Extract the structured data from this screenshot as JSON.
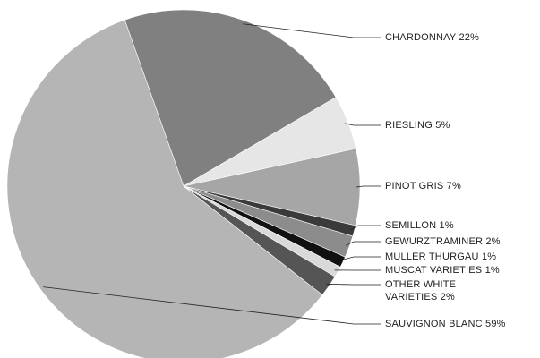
{
  "chart_data": {
    "type": "pie",
    "categories": [
      "CHARDONNAY",
      "RIESLING",
      "PINOT GRIS",
      "SEMILLON",
      "GEWURZTRAMINER",
      "MULLER THURGAU",
      "MUSCAT VARIETIES",
      "OTHER WHITE VARIETIES",
      "SAUVIGNON BLANC"
    ],
    "values": [
      22,
      5,
      7,
      1,
      2,
      1,
      1,
      2,
      59
    ],
    "value_labels": [
      "22%",
      "5%",
      "7%",
      "1%",
      "2%",
      "1%",
      "1%",
      "2%",
      "59%"
    ],
    "colors": [
      "#808080",
      "#e6e6e6",
      "#a6a6a6",
      "#3a3a3a",
      "#8c8c8c",
      "#111111",
      "#d9d9d9",
      "#555555",
      "#b5b5b5"
    ]
  }
}
